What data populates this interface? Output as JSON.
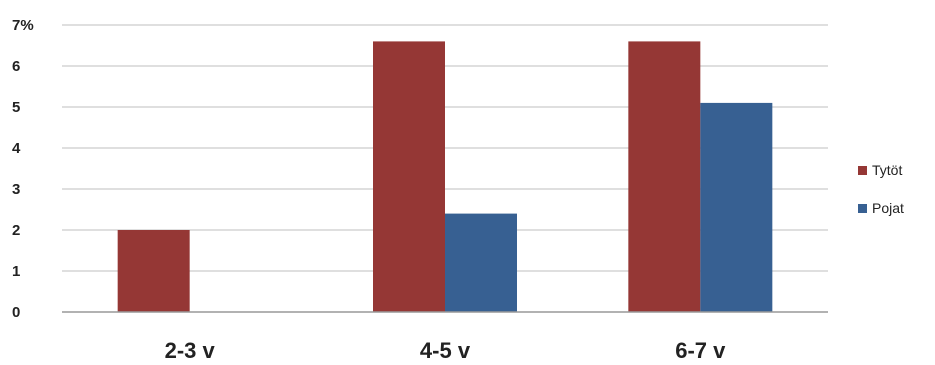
{
  "chart_data": {
    "type": "bar",
    "categories": [
      "2-3 v",
      "4-5 v",
      "6-7 v"
    ],
    "series": [
      {
        "name": "Tytöt",
        "color": "#953735",
        "values": [
          2.0,
          6.6,
          6.6
        ]
      },
      {
        "name": "Pojat",
        "color": "#376092",
        "values": [
          null,
          2.4,
          5.1
        ]
      }
    ],
    "yticks": [
      "0",
      "1",
      "2",
      "3",
      "4",
      "5",
      "6",
      "7%"
    ],
    "ylim": [
      0,
      7
    ],
    "grid": true,
    "legend_position": "right"
  }
}
